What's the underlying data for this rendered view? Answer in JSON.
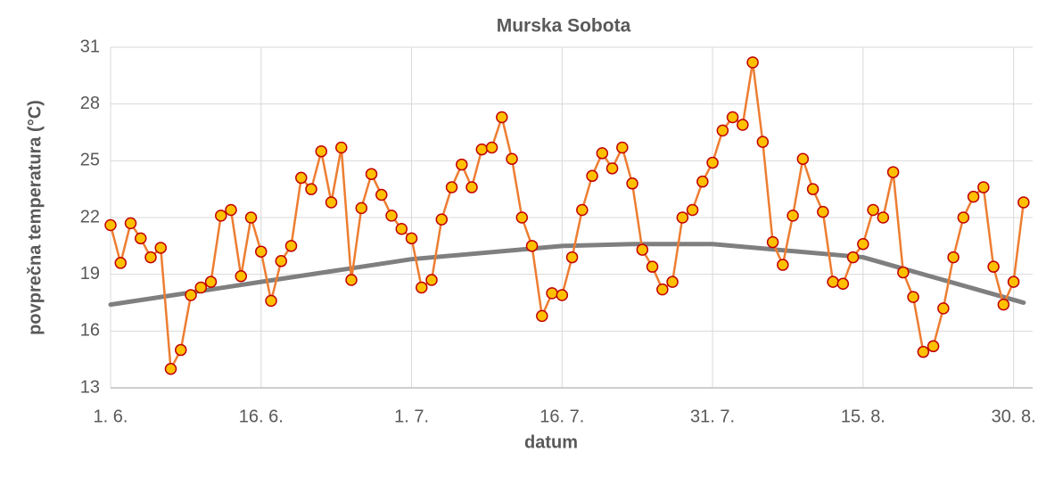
{
  "chart_data": {
    "type": "line",
    "title": "Murska Sobota",
    "x_label": "datum",
    "y_label": "povprečna temperatura (°C)",
    "x": [
      0,
      1,
      2,
      3,
      4,
      5,
      6,
      7,
      8,
      9,
      10,
      11,
      12,
      13,
      14,
      15,
      16,
      17,
      18,
      19,
      20,
      21,
      22,
      23,
      24,
      25,
      26,
      27,
      28,
      29,
      30,
      31,
      32,
      33,
      34,
      35,
      36,
      37,
      38,
      39,
      40,
      41,
      42,
      43,
      44,
      45,
      46,
      47,
      48,
      49,
      50,
      51,
      52,
      53,
      54,
      55,
      56,
      57,
      58,
      59,
      60,
      61,
      62,
      63,
      64,
      65,
      66,
      67,
      68,
      69,
      70,
      71,
      72,
      73,
      74,
      75,
      76,
      77,
      78,
      79,
      80,
      81,
      82,
      83,
      84,
      85,
      86,
      87,
      88,
      89,
      90,
      91
    ],
    "series": [
      {
        "color": "#ed7d31",
        "marker_fill": "#ffc000",
        "marker_stroke": "#c00000",
        "values": [
          21.6,
          19.6,
          21.7,
          20.9,
          19.9,
          20.4,
          14.0,
          15.0,
          17.9,
          18.3,
          18.6,
          22.1,
          22.4,
          18.9,
          22.0,
          20.2,
          17.6,
          19.7,
          20.5,
          24.1,
          23.5,
          25.5,
          22.8,
          25.7,
          18.7,
          22.5,
          24.3,
          23.2,
          22.1,
          21.4,
          20.9,
          18.3,
          18.7,
          21.9,
          23.6,
          24.8,
          23.6,
          25.6,
          25.7,
          27.3,
          25.1,
          22.0,
          20.5,
          16.8,
          18.0,
          17.9,
          19.9,
          22.4,
          24.2,
          25.4,
          24.6,
          25.7,
          23.8,
          20.3,
          19.4,
          18.2,
          18.6,
          22.0,
          22.4,
          23.9,
          24.9,
          26.6,
          27.3,
          26.9,
          30.2,
          26.0,
          20.7,
          19.5,
          22.1,
          25.1,
          23.5,
          22.3,
          18.6,
          18.5,
          19.9,
          20.6,
          22.4,
          22.0,
          24.4,
          19.1,
          17.8,
          14.9,
          15.2,
          17.2,
          19.9,
          22.0,
          23.1,
          23.6,
          19.4,
          17.4,
          18.6,
          22.8
        ]
      },
      {
        "color": "#7f7f7f",
        "x": [
          0,
          15,
          30,
          45,
          52,
          60,
          75,
          91
        ],
        "values": [
          17.4,
          18.6,
          19.8,
          20.5,
          20.6,
          20.6,
          19.9,
          17.5
        ]
      }
    ],
    "xlim": [
      0,
      91.9
    ],
    "ylim": [
      13,
      31
    ],
    "xticks": [
      {
        "value": 0,
        "label": "1. 6."
      },
      {
        "value": 15,
        "label": "16. 6."
      },
      {
        "value": 30,
        "label": "1. 7."
      },
      {
        "value": 45,
        "label": "16. 7."
      },
      {
        "value": 60,
        "label": "31. 7."
      },
      {
        "value": 75,
        "label": "15. 8."
      },
      {
        "value": 90,
        "label": "30. 8."
      }
    ],
    "yticks": [
      13,
      16,
      19,
      22,
      25,
      28,
      31
    ],
    "grid": true
  }
}
